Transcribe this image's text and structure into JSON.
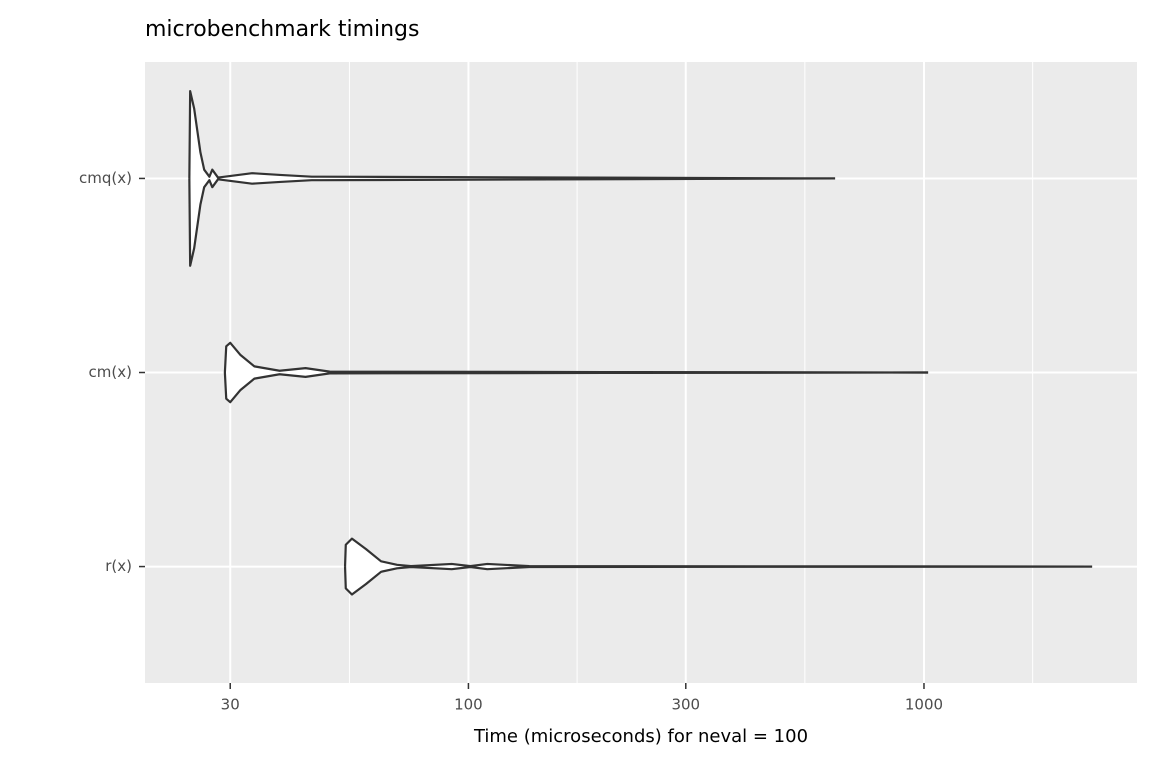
{
  "chart_data": {
    "type": "violin",
    "title": "microbenchmark timings",
    "xlabel": "Time (microseconds) for neval = 100",
    "categories": [
      "cmq(x)",
      "cm(x)",
      "r(x)"
    ],
    "violins": [
      {
        "x": [
          24.4,
          24.5,
          25.0,
          25.8,
          26.3,
          27.0,
          27.4,
          28.2,
          33.5,
          38.6,
          45.3,
          47.5,
          638
        ],
        "density": [
          0,
          1.0,
          0.8,
          0.3,
          0.1,
          0.02,
          0.1,
          0.01,
          0.06,
          0.04,
          0.02,
          0.02,
          0
        ]
      },
      {
        "x": [
          29.2,
          29.4,
          30.0,
          31.6,
          33.9,
          38.5,
          43.9,
          49.6,
          198,
          1021
        ],
        "density": [
          0,
          0.3,
          0.34,
          0.2,
          0.07,
          0.02,
          0.05,
          0.01,
          0.005,
          0
        ]
      },
      {
        "x": [
          53.6,
          53.8,
          55.5,
          59.6,
          64.3,
          69.7,
          74.8,
          91.9,
          101,
          110,
          136,
          2339
        ],
        "density": [
          0,
          0.25,
          0.32,
          0.2,
          0.06,
          0.02,
          0.005,
          0.03,
          0.005,
          0.03,
          0.005,
          0
        ]
      }
    ],
    "fill": "#ffffff",
    "line_color": "#333333",
    "xlim": [
      19.5,
      2935
    ],
    "xticks": [
      30,
      100,
      300,
      1000
    ],
    "x_minor_grid": [
      54.8,
      173.2,
      547.7,
      1732
    ],
    "log_x": true,
    "grid": true
  }
}
